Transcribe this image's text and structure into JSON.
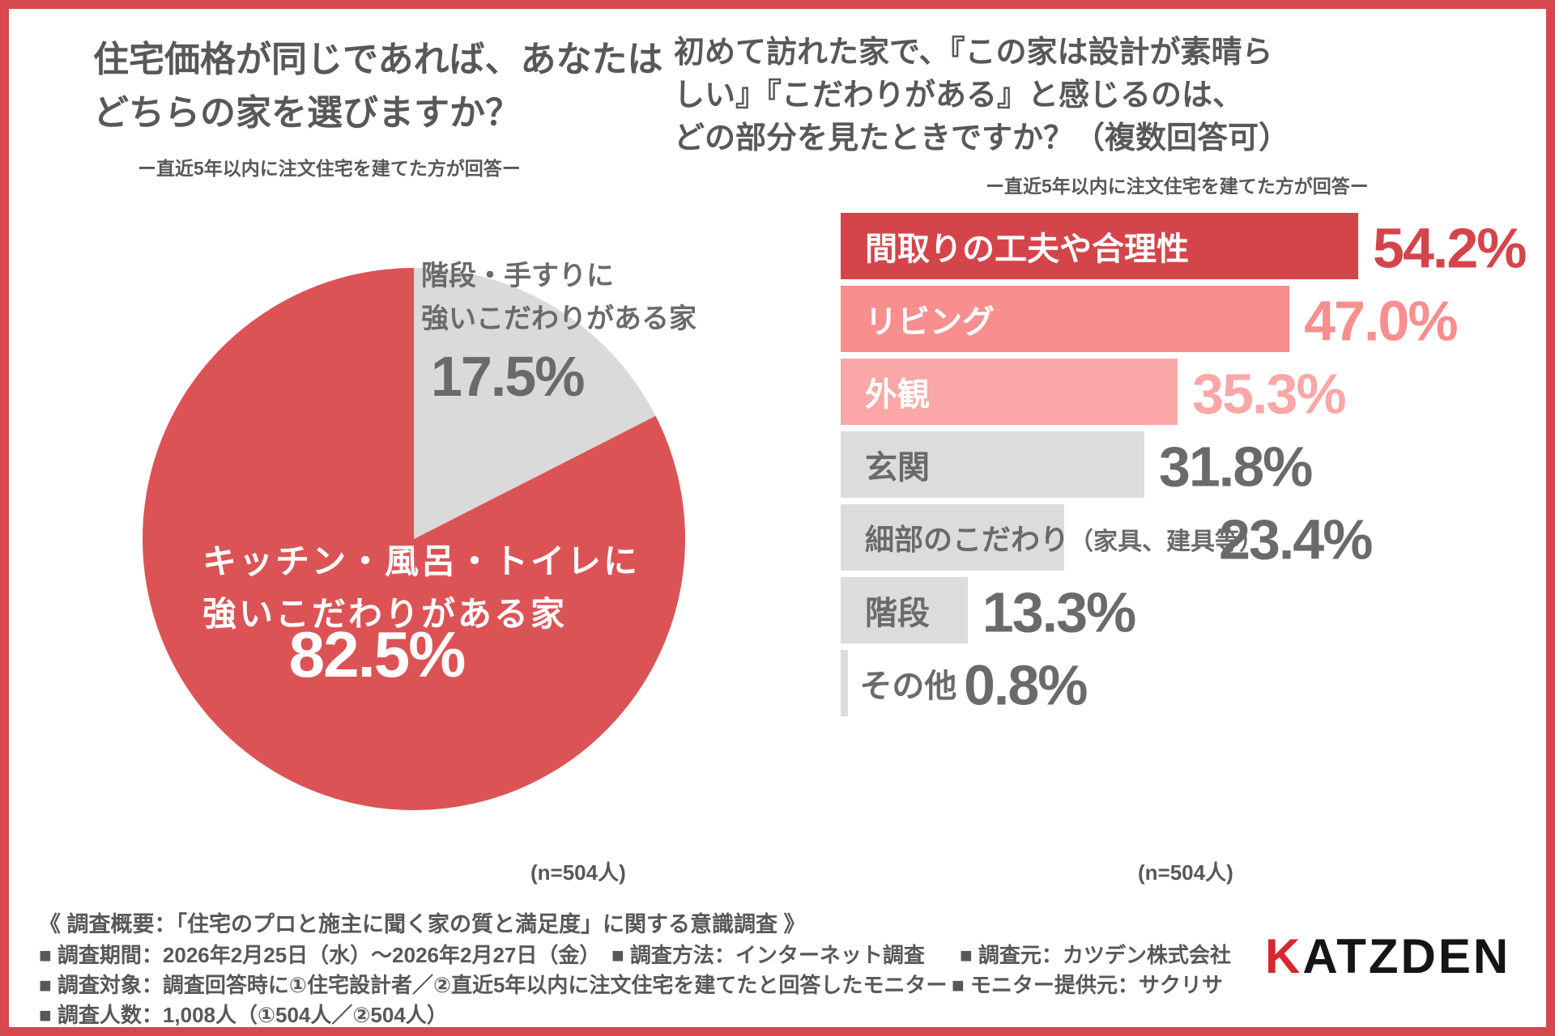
{
  "chart_data": [
    {
      "type": "pie",
      "title": "住宅価格が同じであれば、あなたはどちらの家を選びますか？",
      "title_lines": [
        "住宅価格が同じであれば、あなたは",
        "どちらの家を選びますか？"
      ],
      "subtitle": "ー直近5年以内に注文住宅を建てた方が回答ー",
      "n": "(n=504人)",
      "legend_position": "on-slices",
      "start_angle_deg": 0,
      "slices": [
        {
          "label": "キッチン・風呂・トイレに強いこだわりがある家",
          "label_lines": [
            "キッチン・風呂・トイレに",
            "強いこだわりがある家"
          ],
          "value": 82.5,
          "value_text": "82.5%",
          "color": "#DC5356",
          "text_color": "#FFFFFF"
        },
        {
          "label": "階段・手すりに強いこだわりがある家",
          "label_lines": [
            "階段・手すりに",
            "強いこだわりがある家"
          ],
          "value": 17.5,
          "value_text": "17.5%",
          "color": "#DADADA",
          "text_color": "#6A6A6A"
        }
      ]
    },
    {
      "type": "bar",
      "orientation": "horizontal",
      "title": "初めて訪れた家で、『この家は設計が素晴らしい』『こだわりがある』と感じるのは、どの部分を見たときですか？（複数回答可）",
      "title_lines": [
        "初めて訪れた家で、『この家は設計が素晴ら",
        "しい』『こだわりがある』と感じるのは、",
        "どの部分を見たときですか？（複数回答可）"
      ],
      "subtitle": "ー直近5年以内に注文住宅を建てた方が回答ー",
      "n": "(n=504人)",
      "xlim": [
        0,
        56
      ],
      "axis_visible": false,
      "categories": [
        "間取りの工夫や合理性",
        "リビング",
        "外観",
        "玄関",
        "細部のこだわり（家具、建具等）",
        "階段",
        "その他"
      ],
      "values": [
        54.2,
        47.0,
        35.3,
        31.8,
        23.4,
        13.3,
        0.8
      ],
      "items": [
        {
          "label": "間取りの工夫や合理性",
          "note": "",
          "value": 54.2,
          "value_text": "54.2%",
          "bar_color": "#D4454B",
          "label_color": "#FFFFFF",
          "value_color": "#D4454B",
          "label_outside": false
        },
        {
          "label": "リビング",
          "note": "",
          "value": 47.0,
          "value_text": "47.0%",
          "bar_color": "#F88E8E",
          "label_color": "#FFFFFF",
          "value_color": "#F88E8E",
          "label_outside": false
        },
        {
          "label": "外観",
          "note": "",
          "value": 35.3,
          "value_text": "35.3%",
          "bar_color": "#FAA7A7",
          "label_color": "#FFFFFF",
          "value_color": "#FAA7A7",
          "label_outside": false
        },
        {
          "label": "玄関",
          "note": "",
          "value": 31.8,
          "value_text": "31.8%",
          "bar_color": "#DCDCDC",
          "label_color": "#6A6A6A",
          "value_color": "#6A6A6A",
          "label_outside": false
        },
        {
          "label": "細部のこだわり",
          "note": "（家具、建具等）",
          "value": 23.4,
          "value_text": "23.4%",
          "bar_color": "#DCDCDC",
          "label_color": "#6A6A6A",
          "value_color": "#6A6A6A",
          "label_outside": false
        },
        {
          "label": "階段",
          "note": "",
          "value": 13.3,
          "value_text": "13.3%",
          "bar_color": "#DCDCDC",
          "label_color": "#6A6A6A",
          "value_color": "#6A6A6A",
          "label_outside": false
        },
        {
          "label": "その他",
          "note": "",
          "value": 0.8,
          "value_text": "0.8%",
          "bar_color": "#DCDCDC",
          "label_color": "#6A6A6A",
          "value_color": "#6A6A6A",
          "label_outside": true
        }
      ]
    }
  ],
  "footer": {
    "overview": "《 調査概要：「住宅のプロと施主に聞く家の質と満足度」に関する意識調査 》",
    "period": "■ 調査期間：2026年2月25日（水）～2026年2月27日（金）",
    "method": "■ 調査方法：インターネット調査",
    "source": "■ 調査元：カツデン株式会社",
    "target": "■ 調査対象：調査回答時に①住宅設計者／②直近5年以内に注文住宅を建てたと回答したモニター",
    "monitor": "■ モニター提供元：サクリサ",
    "count": "■ 調査人数：1,008人（①504人／②504人）",
    "logo_k": "K",
    "logo_rest": "ATZDEN"
  },
  "colors": {
    "frame": "#D5484D",
    "pie_red": "#DC5356",
    "bar_dark_red": "#D4454B",
    "bar_salmon": "#F88E8E",
    "bar_pink": "#FAA7A7",
    "bar_gray": "#DCDCDC",
    "text_dark": "#595757",
    "text_gray": "#6A6A6A",
    "logo_red": "#D7282F"
  }
}
